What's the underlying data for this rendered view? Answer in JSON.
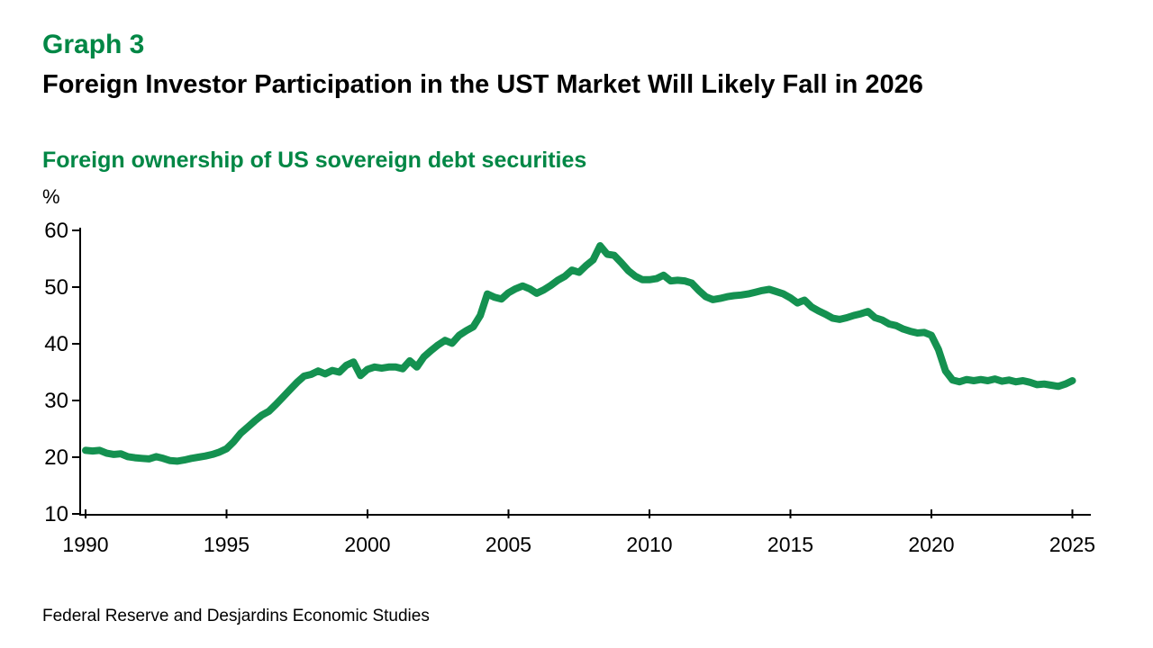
{
  "header": {
    "graph_label": "Graph 3",
    "title": "Foreign Investor Participation in the UST Market Will Likely Fall in 2026",
    "subtitle": "Foreign ownership of US sovereign debt securities",
    "unit_label": "%"
  },
  "footer": {
    "source": "Federal Reserve and Desjardins Economic Studies"
  },
  "colors": {
    "accent_green": "#008745",
    "line_green": "#149150",
    "axis_black": "#000000",
    "background": "#ffffff"
  },
  "chart_data": {
    "type": "line",
    "title": "Foreign ownership of US sovereign debt securities",
    "xlabel": "",
    "ylabel": "%",
    "ylim": [
      10,
      60
    ],
    "yticks": [
      10,
      20,
      30,
      40,
      50,
      60
    ],
    "xticks": [
      1990,
      1995,
      2000,
      2005,
      2010,
      2015,
      2020,
      2025
    ],
    "grid": false,
    "legend_position": "none",
    "series": [
      {
        "name": "Foreign ownership of US sovereign debt securities (%)",
        "x_start": 1990,
        "x_step": 0.25,
        "values": [
          21.2,
          21.1,
          21.2,
          20.7,
          20.5,
          20.6,
          20.1,
          19.9,
          19.8,
          19.7,
          20.1,
          19.8,
          19.4,
          19.3,
          19.5,
          19.8,
          20.0,
          20.2,
          20.5,
          20.9,
          21.5,
          22.7,
          24.2,
          25.3,
          26.4,
          27.4,
          28.1,
          29.3,
          30.6,
          31.9,
          33.2,
          34.3,
          34.6,
          35.2,
          34.7,
          35.3,
          35.0,
          36.2,
          36.8,
          34.4,
          35.5,
          35.9,
          35.7,
          35.9,
          35.9,
          35.6,
          37.0,
          35.9,
          37.7,
          38.8,
          39.8,
          40.6,
          40.1,
          41.5,
          42.3,
          43.0,
          45.0,
          48.8,
          48.2,
          47.9,
          49.0,
          49.7,
          50.2,
          49.7,
          48.9,
          49.5,
          50.3,
          51.2,
          51.9,
          53.0,
          52.6,
          53.8,
          54.8,
          57.3,
          55.8,
          55.6,
          54.3,
          52.9,
          51.9,
          51.3,
          51.3,
          51.5,
          52.1,
          51.1,
          51.2,
          51.1,
          50.7,
          49.4,
          48.3,
          47.8,
          48.0,
          48.3,
          48.5,
          48.6,
          48.8,
          49.1,
          49.4,
          49.6,
          49.2,
          48.8,
          48.1,
          47.2,
          47.7,
          46.5,
          45.8,
          45.2,
          44.5,
          44.3,
          44.6,
          45.0,
          45.3,
          45.7,
          44.6,
          44.2,
          43.5,
          43.2,
          42.6,
          42.2,
          41.9,
          42.0,
          41.5,
          39.0,
          35.2,
          33.6,
          33.3,
          33.7,
          33.5,
          33.7,
          33.5,
          33.8,
          33.4,
          33.6,
          33.3,
          33.5,
          33.2,
          32.8,
          32.9,
          32.7,
          32.5,
          32.9,
          33.5
        ]
      }
    ]
  }
}
